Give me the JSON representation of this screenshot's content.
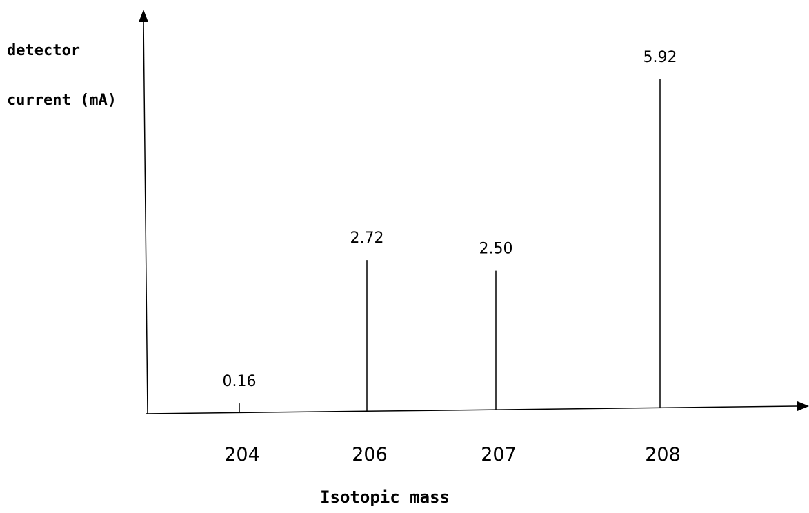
{
  "chart_data": {
    "type": "bar",
    "ylabel_lines": [
      "detector",
      "current (mA)"
    ],
    "xlabel": "Isotopic mass",
    "categories": [
      "204",
      "206",
      "207",
      "208"
    ],
    "values": [
      0.16,
      2.72,
      2.5,
      5.92
    ],
    "value_labels": [
      "0.16",
      "2.72",
      "2.50",
      "5.92"
    ],
    "ylim": [
      0,
      6.5
    ],
    "grid": false,
    "legend": "none",
    "bar_style": "thin vertical lines",
    "colors": {
      "line": "#000000",
      "text": "#000000",
      "background": "#ffffff"
    }
  }
}
